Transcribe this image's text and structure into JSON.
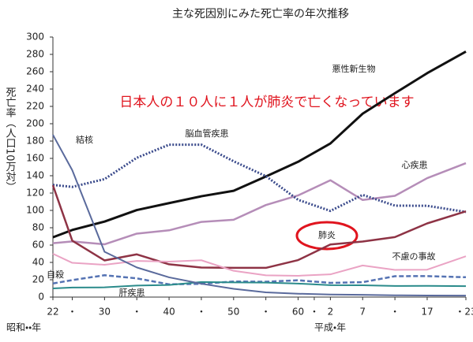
{
  "chart_data": {
    "type": "line",
    "title": "主な死因別にみた死亡率の年次推移",
    "y_label": "死亡率（人口10万対）",
    "x_label_showa": "昭和・・年",
    "x_label_heisei": "平成・年",
    "annotation": "日本人の１０人に１人が肺炎で亡くなっています",
    "x": [
      1947,
      1950,
      1955,
      1960,
      1965,
      1970,
      1975,
      1980,
      1985,
      1990,
      1995,
      2000,
      2005,
      2011
    ],
    "xlim": [
      1947,
      2011
    ],
    "xticks": [
      {
        "value": 1947,
        "label": "22"
      },
      {
        "value": 1950,
        "label": "・"
      },
      {
        "value": 1955,
        "label": "30"
      },
      {
        "value": 1960,
        "label": "・"
      },
      {
        "value": 1965,
        "label": "40"
      },
      {
        "value": 1970,
        "label": "・"
      },
      {
        "value": 1975,
        "label": "50"
      },
      {
        "value": 1980,
        "label": "・"
      },
      {
        "value": 1985,
        "label": "60"
      },
      {
        "value": 1987.5,
        "label": "・"
      },
      {
        "value": 1990,
        "label": "2"
      },
      {
        "value": 1995,
        "label": "7"
      },
      {
        "value": 2000,
        "label": "・"
      },
      {
        "value": 2005,
        "label": "17"
      },
      {
        "value": 2011,
        "label": "・23"
      }
    ],
    "ylim": [
      0,
      300
    ],
    "yticks": [
      0,
      20,
      40,
      60,
      80,
      100,
      120,
      140,
      160,
      180,
      200,
      220,
      240,
      260,
      280,
      300
    ],
    "series": [
      {
        "name": "悪性新生物",
        "color": "#111111",
        "dash": "solid",
        "width": 3,
        "values": [
          69,
          77.4,
          87.1,
          100.4,
          108.4,
          116.3,
          122.6,
          139.1,
          156.1,
          177.2,
          211.6,
          235.2,
          258.3,
          283.2
        ]
      },
      {
        "name": "心疾患",
        "color": "#b58db8",
        "dash": "solid",
        "width": 2.5,
        "values": [
          62.2,
          64.2,
          60.9,
          73.2,
          77,
          86.7,
          89.2,
          106.2,
          117.3,
          134.8,
          112,
          116.8,
          137.2,
          154.5
        ]
      },
      {
        "name": "脳血管疾患",
        "color": "#3b4b8c",
        "dash": "dotted",
        "width": 3,
        "values": [
          129.4,
          127.1,
          136.1,
          160.7,
          175.8,
          175.8,
          156.7,
          139.5,
          112.2,
          99.4,
          117.9,
          105.5,
          105.3,
          98.2
        ]
      },
      {
        "name": "肺炎",
        "color": "#8e3345",
        "dash": "solid",
        "width": 2.5,
        "values": [
          129,
          65.1,
          42.3,
          49.3,
          37.8,
          34.1,
          33.7,
          33.7,
          42.7,
          60.7,
          64.1,
          69.2,
          85,
          98.9
        ]
      },
      {
        "name": "不慮の事故",
        "color": "#eaa3c4",
        "dash": "solid",
        "width": 2,
        "values": [
          50,
          39.5,
          37.3,
          41.7,
          40.9,
          42.5,
          30.3,
          25.1,
          24.6,
          26.2,
          36.5,
          31.4,
          31.6,
          47.1
        ]
      },
      {
        "name": "自殺",
        "color": "#5573b3",
        "dash": "dashed",
        "width": 2.5,
        "values": [
          15.7,
          19.6,
          25.2,
          21.6,
          14.7,
          15.3,
          18,
          17.7,
          19.4,
          16.4,
          17.2,
          24.1,
          24.2,
          22.9
        ]
      },
      {
        "name": "肝疾患",
        "color": "#2b8b8b",
        "dash": "solid",
        "width": 2,
        "values": [
          10,
          11,
          11.2,
          13.3,
          14,
          17.4,
          16.9,
          16.7,
          15.6,
          13.7,
          13.6,
          12.8,
          12.9,
          12.6
        ]
      },
      {
        "name": "結核",
        "color": "#5a6a9c",
        "dash": "solid",
        "width": 2,
        "values": [
          187.2,
          146.4,
          52.3,
          34.2,
          22.8,
          15.4,
          9.5,
          5.5,
          3.9,
          3,
          2.6,
          2.1,
          1.8,
          1.7
        ]
      }
    ]
  }
}
